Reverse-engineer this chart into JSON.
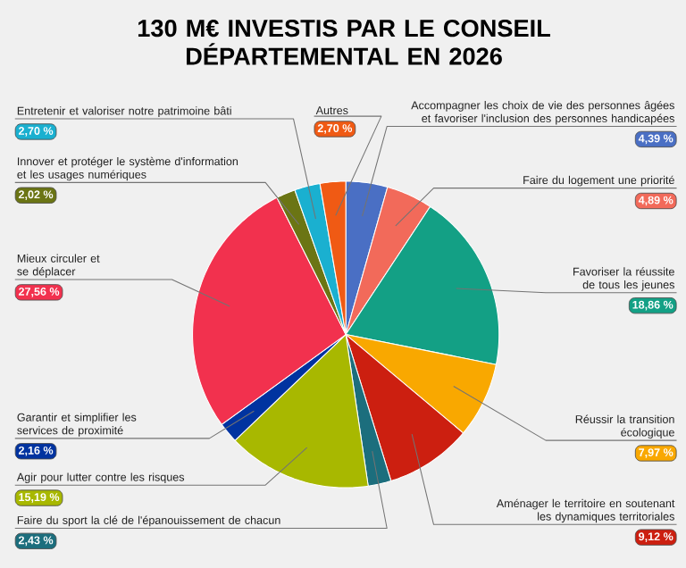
{
  "chart_data": {
    "type": "pie",
    "title": "130 M€ INVESTIS PAR LE CONSEIL DÉPARTEMENTAL EN 2026",
    "categories": [
      "Accompagner les choix de vie des personnes âgées et favoriser l'inclusion des personnes handicapées",
      "Faire du logement une priorité",
      "Favoriser la réussite de tous les jeunes",
      "Réussir la transition écologique",
      "Aménager le territoire en soutenant les dynamiques territoriales",
      "Faire du sport la clé de l'épanouissement de chacun",
      "Agir pour lutter contre les risques",
      "Garantir et simplifier les services de proximité",
      "Mieux circuler et se déplacer",
      "Innover et protéger le système d'information et les usages numériques",
      "Entretenir et valoriser notre patrimoine bâti",
      "Autres"
    ],
    "values": [
      4.39,
      4.89,
      18.86,
      7.97,
      9.12,
      2.43,
      15.19,
      2.16,
      27.56,
      2.02,
      2.7,
      2.7
    ],
    "value_labels": [
      "4,39 %",
      "4,89 %",
      "18,86 %",
      "7,97 %",
      "9,12 %",
      "2,43 %",
      "15,19 %",
      "2,16 %",
      "27,56 %",
      "2,02 %",
      "2,70 %",
      "2,70 %"
    ],
    "colors": [
      "#4a6fc4",
      "#f26a5a",
      "#13a085",
      "#f9a800",
      "#cc1f10",
      "#1c6e7d",
      "#a8b800",
      "#0033a0",
      "#f2314e",
      "#6b7514",
      "#1ab0d0",
      "#f05a14"
    ]
  }
}
